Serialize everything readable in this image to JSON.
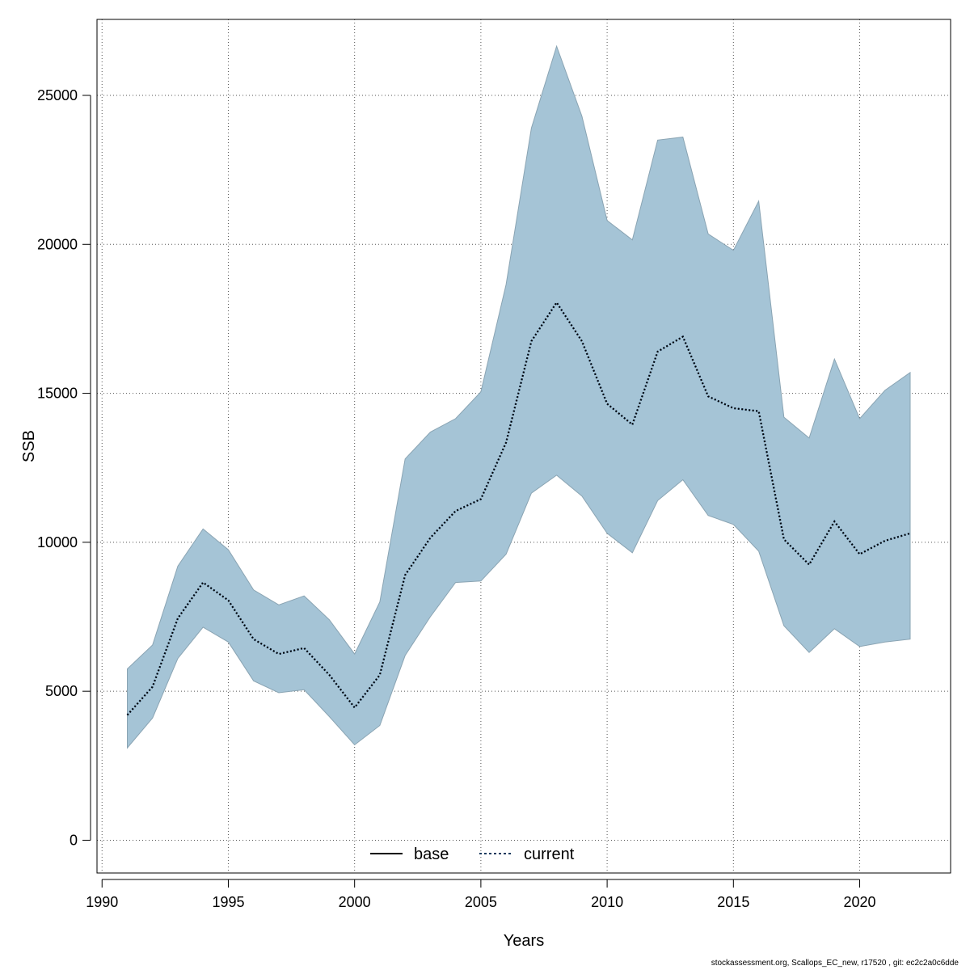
{
  "chart_data": {
    "type": "area",
    "xlabel": "Years",
    "ylabel": "SSB",
    "xlim": [
      1989.8,
      2023.6
    ],
    "ylim": [
      -1100,
      27550
    ],
    "x_ticks": [
      1990,
      1995,
      2000,
      2005,
      2010,
      2015,
      2020
    ],
    "y_ticks": [
      0,
      5000,
      10000,
      15000,
      20000,
      25000
    ],
    "grid": true,
    "legend_position": "bottom-center",
    "colors": {
      "band": "#a5c4d6",
      "band_edge": "#8aa4b3",
      "current": "#1a3a5e",
      "base": "#000000"
    },
    "x": [
      1991,
      1992,
      1993,
      1994,
      1995,
      1996,
      1997,
      1998,
      1999,
      2000,
      2001,
      2002,
      2003,
      2004,
      2005,
      2006,
      2007,
      2008,
      2009,
      2010,
      2011,
      2012,
      2013,
      2014,
      2015,
      2016,
      2017,
      2018,
      2019,
      2020,
      2021,
      2022
    ],
    "series": [
      {
        "name": "current",
        "values": [
          4200,
          5150,
          7450,
          8650,
          8050,
          6750,
          6250,
          6450,
          5550,
          4450,
          5550,
          8900,
          10150,
          11050,
          11450,
          13350,
          16750,
          18050,
          16750,
          14650,
          13950,
          16400,
          16900,
          14900,
          14500,
          14400,
          10100,
          9250,
          10700,
          9600,
          10050,
          10300
        ],
        "lower": [
          3100,
          4100,
          6100,
          7150,
          6650,
          5350,
          4950,
          5050,
          4150,
          3200,
          3850,
          6200,
          7500,
          8650,
          8700,
          9600,
          11650,
          12250,
          11550,
          10300,
          9650,
          11400,
          12100,
          10900,
          10600,
          9700,
          7200,
          6300,
          7100,
          6500,
          6650,
          6750
        ],
        "upper": [
          5750,
          6550,
          9200,
          10450,
          9750,
          8400,
          7900,
          8200,
          7400,
          6250,
          8000,
          12800,
          13700,
          14150,
          15050,
          18650,
          23900,
          26650,
          24300,
          20800,
          20150,
          23500,
          23600,
          20350,
          19800,
          21450,
          14200,
          13500,
          16150,
          14150,
          15100,
          15700
        ]
      }
    ],
    "legend": [
      {
        "name": "base",
        "style": "solid"
      },
      {
        "name": "current",
        "style": "dotted"
      }
    ]
  },
  "footer": "stockassessment.org, Scallops_EC_new, r17520 , git: ec2c2a0c6dde"
}
